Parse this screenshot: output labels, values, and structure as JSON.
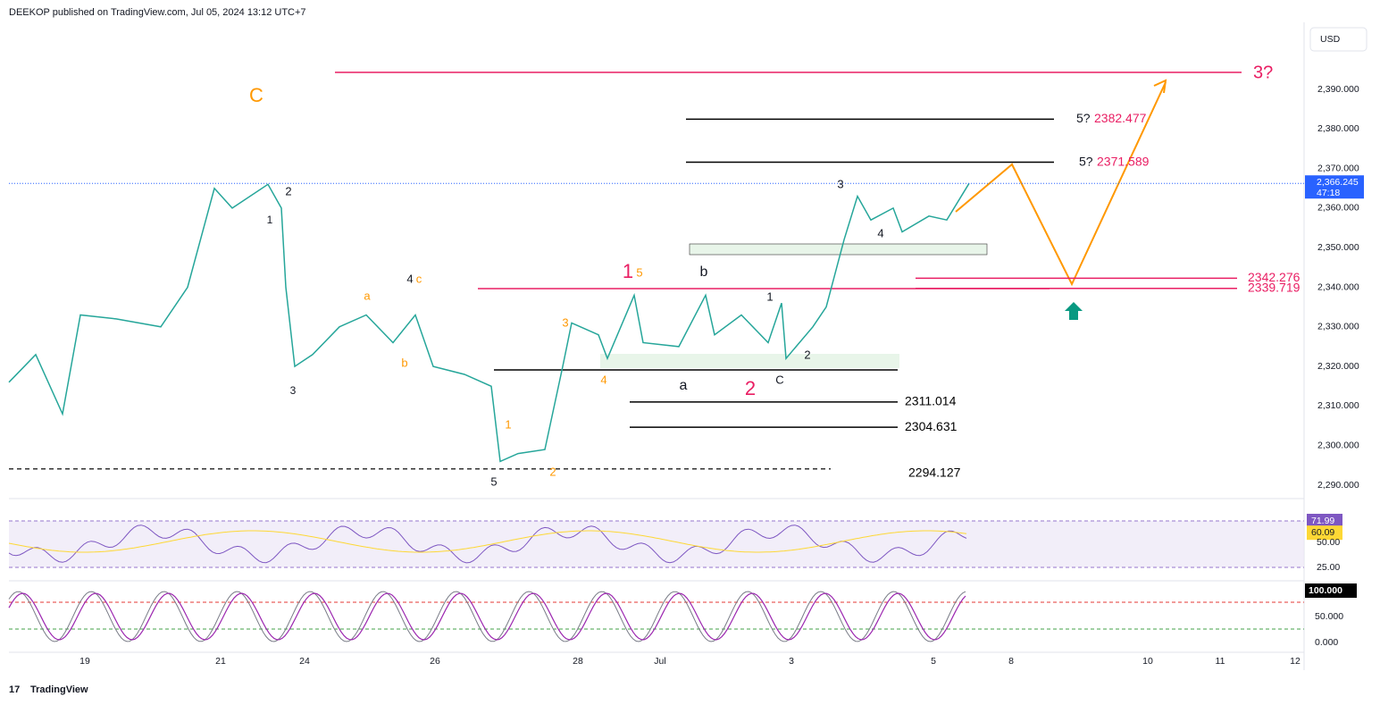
{
  "header": "DEEKOP published on TradingView.com, Jul 05, 2024 13:12 UTC+7",
  "currency": "USD",
  "price_axis": {
    "ticks": [
      {
        "value": 2390,
        "label": "2,390.000"
      },
      {
        "value": 2380,
        "label": "2,380.000"
      },
      {
        "value": 2370,
        "label": "2,370.000"
      },
      {
        "value": 2360,
        "label": "2,360.000"
      },
      {
        "value": 2350,
        "label": "2,350.000"
      },
      {
        "value": 2340,
        "label": "2,340.000"
      },
      {
        "value": 2330,
        "label": "2,330.000"
      },
      {
        "value": 2320,
        "label": "2,320.000"
      },
      {
        "value": 2310,
        "label": "2,310.000"
      },
      {
        "value": 2300,
        "label": "2,300.000"
      },
      {
        "value": 2290,
        "label": "2,290.000"
      }
    ]
  },
  "last_price": {
    "value": 2366.245,
    "label": "2,366.245",
    "countdown": "47:18"
  },
  "time_axis": [
    "19",
    "21",
    "24",
    "26",
    "28",
    "Jul",
    "3",
    "5",
    "8",
    "10",
    "11",
    "12"
  ],
  "price_path": [
    2316,
    2323,
    2308,
    2333,
    2332,
    2330,
    2340,
    2365,
    2360,
    2366,
    2360,
    2340,
    2320,
    2323,
    2330,
    2333,
    2326,
    2333,
    2320,
    2318,
    2315,
    2296,
    2298,
    2299,
    2320,
    2331,
    2328,
    2322,
    2338,
    2326,
    2325,
    2338,
    2328,
    2333,
    2326,
    2336,
    2322,
    2330,
    2335,
    2352,
    2363,
    2357,
    2360,
    2354,
    2358,
    2357,
    2366.245
  ],
  "target_label": "3?",
  "levels": [
    {
      "prefix": "5?",
      "value": 2382.477
    },
    {
      "prefix": "5?",
      "value": 2371.589
    },
    {
      "value": 2342.276
    },
    {
      "value": 2339.719
    },
    {
      "value": 2311.014
    },
    {
      "value": 2304.631
    },
    {
      "value": 2294.127
    }
  ],
  "wave_labels": [
    "C",
    "2",
    "1",
    "3",
    "a",
    "4",
    "c",
    "b",
    "1",
    "5",
    "2",
    "3",
    "4",
    "1",
    "5",
    "b",
    "a",
    "1",
    "2",
    "C",
    "2",
    "3",
    "4"
  ],
  "rsi": {
    "value": 71.99,
    "average": 60.09,
    "ticks": [
      {
        "value": 50,
        "label": "50.00"
      },
      {
        "value": 25,
        "label": "25.00"
      }
    ]
  },
  "stoch": {
    "value": {
      "value": 100,
      "label": "100.000"
    },
    "ticks": [
      {
        "value": 50,
        "label": "50.000"
      },
      {
        "value": 0,
        "label": "0.000"
      }
    ]
  },
  "footer": "TradingView"
}
